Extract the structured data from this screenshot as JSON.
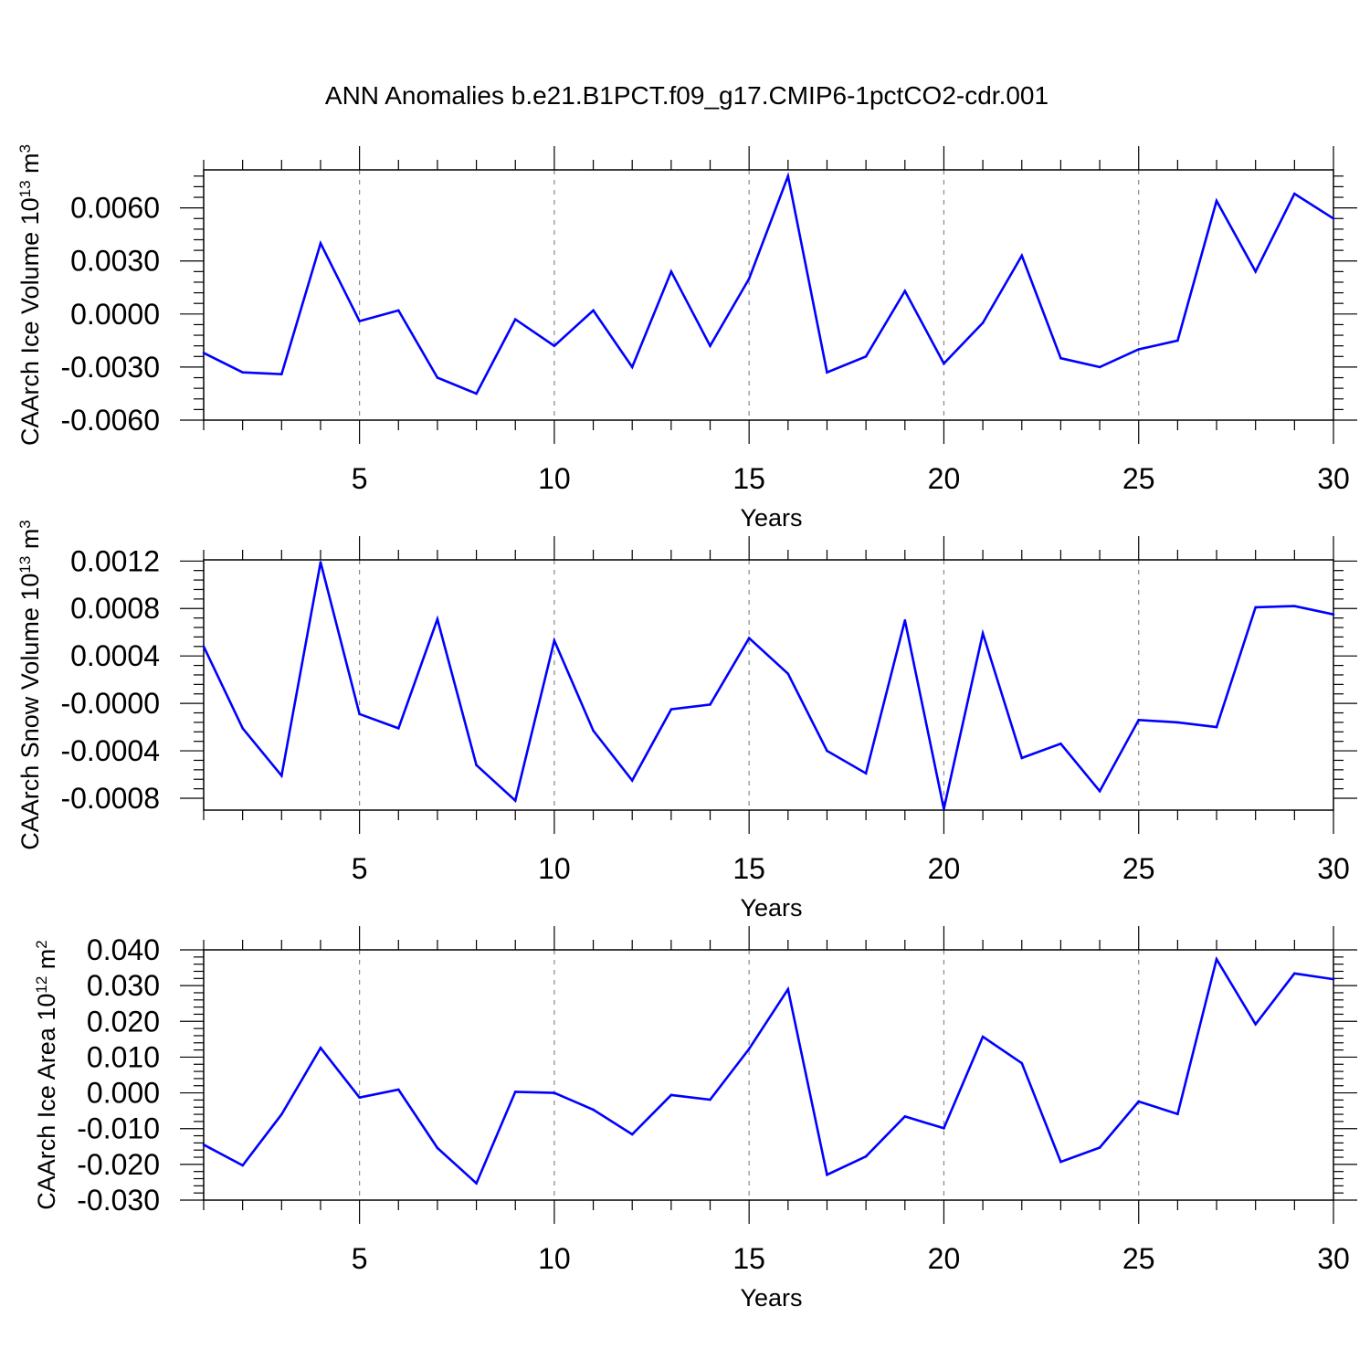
{
  "title": "ANN Anomalies b.e21.B1PCT.f09_g17.CMIP6-1pctCO2-cdr.001",
  "line_color": "#0000ff",
  "chart_data": [
    {
      "type": "line",
      "ylabel": "CAArch Ice Volume 10",
      "ylabel_exponent": "13",
      "ylabel_unit": " m",
      "ylabel_unit_exponent": "3",
      "xlabel": "Years",
      "xlim": [
        1,
        30
      ],
      "ylim": [
        -0.006,
        0.00815
      ],
      "xticks": [
        5,
        10,
        15,
        20,
        25,
        30
      ],
      "xtick_labels": [
        "5",
        "10",
        "15",
        "20",
        "25",
        "30"
      ],
      "yticks": [
        -0.006,
        -0.003,
        0.0,
        0.003,
        0.006
      ],
      "ytick_labels": [
        "-0.0060",
        "-0.0030",
        "0.0000",
        "0.0030",
        "0.0060"
      ],
      "x": [
        1,
        2,
        3,
        4,
        5,
        6,
        7,
        8,
        9,
        10,
        11,
        12,
        13,
        14,
        15,
        16,
        17,
        18,
        19,
        20,
        21,
        22,
        23,
        24,
        25,
        26,
        27,
        28,
        29,
        30
      ],
      "values": [
        -0.0022,
        -0.0033,
        -0.0034,
        0.004,
        -0.0004,
        0.0002,
        -0.0036,
        -0.0045,
        -0.0003,
        -0.0018,
        0.0002,
        -0.003,
        0.0024,
        -0.0018,
        0.002,
        0.0078,
        -0.0033,
        -0.0024,
        0.0013,
        -0.0028,
        -0.0005,
        0.0033,
        -0.0025,
        -0.003,
        -0.002,
        -0.0015,
        0.0064,
        0.0024,
        0.0068,
        0.0054
      ]
    },
    {
      "type": "line",
      "ylabel": "CAArch Snow Volume 10",
      "ylabel_exponent": "13",
      "ylabel_unit": " m",
      "ylabel_unit_exponent": "3",
      "xlabel": "Years",
      "xlim": [
        1,
        30
      ],
      "ylim": [
        -0.0009,
        0.00121
      ],
      "xticks": [
        5,
        10,
        15,
        20,
        25,
        30
      ],
      "xtick_labels": [
        "5",
        "10",
        "15",
        "20",
        "25",
        "30"
      ],
      "yticks": [
        -0.0008,
        -0.0004,
        0.0,
        0.0004,
        0.0008,
        0.0012
      ],
      "ytick_labels": [
        "-0.0008",
        "-0.0004",
        "-0.0000",
        "0.0004",
        "0.0008",
        "0.0012"
      ],
      "x": [
        1,
        2,
        3,
        4,
        5,
        6,
        7,
        8,
        9,
        10,
        11,
        12,
        13,
        14,
        15,
        16,
        17,
        18,
        19,
        20,
        21,
        22,
        23,
        24,
        25,
        26,
        27,
        28,
        29,
        30
      ],
      "values": [
        0.00048,
        -0.00021,
        -0.00061,
        0.00119,
        -9e-05,
        -0.00021,
        0.00071,
        -0.00052,
        -0.00082,
        0.00053,
        -0.00023,
        -0.00065,
        -5e-05,
        -1e-05,
        0.00055,
        0.00025,
        -0.0004,
        -0.00059,
        0.0007,
        -0.00089,
        0.00059,
        -0.00046,
        -0.00034,
        -0.00074,
        -0.00014,
        -0.00016,
        -0.0002,
        0.00081,
        0.00082,
        0.00075
      ]
    },
    {
      "type": "line",
      "ylabel": "CAArch Ice Area 10",
      "ylabel_exponent": "12",
      "ylabel_unit": " m",
      "ylabel_unit_exponent": "2",
      "xlabel": "Years",
      "xlim": [
        1,
        30
      ],
      "ylim": [
        -0.03,
        0.04
      ],
      "xticks": [
        5,
        10,
        15,
        20,
        25,
        30
      ],
      "xtick_labels": [
        "5",
        "10",
        "15",
        "20",
        "25",
        "30"
      ],
      "yticks": [
        -0.03,
        -0.02,
        -0.01,
        0.0,
        0.01,
        0.02,
        0.03,
        0.04
      ],
      "ytick_labels": [
        "-0.030",
        "-0.020",
        "-0.010",
        "0.000",
        "0.010",
        "0.020",
        "0.030",
        "0.040"
      ],
      "x": [
        1,
        2,
        3,
        4,
        5,
        6,
        7,
        8,
        9,
        10,
        11,
        12,
        13,
        14,
        15,
        16,
        17,
        18,
        19,
        20,
        21,
        22,
        23,
        24,
        25,
        26,
        27,
        28,
        29,
        30
      ],
      "values": [
        -0.0145,
        -0.0203,
        -0.006,
        0.0126,
        -0.0013,
        0.0009,
        -0.0154,
        -0.0253,
        0.0003,
        0.0,
        -0.0047,
        -0.0116,
        -0.0006,
        -0.0019,
        0.0123,
        0.029,
        -0.0229,
        -0.0178,
        -0.0066,
        -0.0099,
        0.0157,
        0.0083,
        -0.0193,
        -0.0153,
        -0.0024,
        -0.0059,
        0.0374,
        0.0192,
        0.0334,
        0.0318
      ]
    }
  ]
}
